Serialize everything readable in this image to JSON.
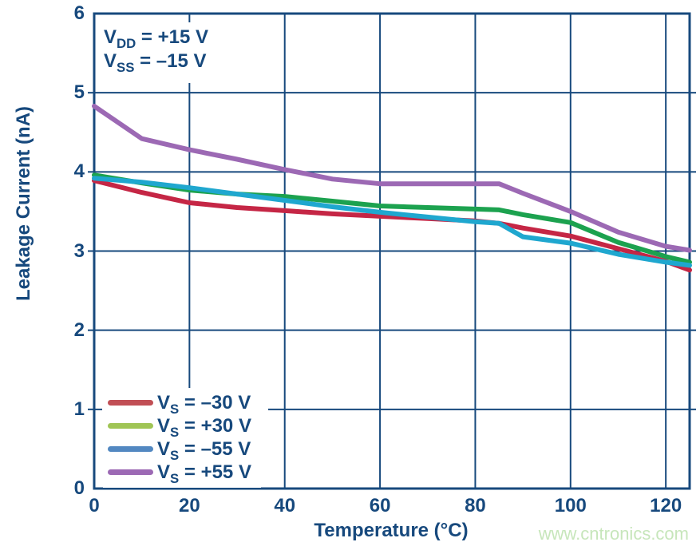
{
  "colors": {
    "axis": "#17497d",
    "background": "#ffffff",
    "watermark": "#c7e6bb"
  },
  "watermark": "www.cntronics.com",
  "annotation": {
    "lines": [
      {
        "pre": "V",
        "sub": "DD",
        "post": " = +15 V",
        "text": "VDD = +15 V"
      },
      {
        "pre": "V",
        "sub": "SS",
        "post": " = –15 V",
        "text": "VSS = –15 V"
      }
    ]
  },
  "chart_data": {
    "type": "line",
    "title": "",
    "xlabel": "Temperature (°C)",
    "ylabel": "Leakage Current (nA)",
    "xlim": [
      0,
      125
    ],
    "ylim": [
      0,
      6
    ],
    "x_ticks": [
      0,
      20,
      40,
      60,
      80,
      100,
      120
    ],
    "y_ticks": [
      0,
      1,
      2,
      3,
      4,
      5,
      6
    ],
    "grid": true,
    "legend_position": "lower-left",
    "x": [
      0,
      10,
      20,
      30,
      40,
      50,
      60,
      70,
      80,
      85,
      90,
      100,
      110,
      120,
      125
    ],
    "series": [
      {
        "id": "vs-minus-30",
        "name": "VS = –30 V",
        "pre": "V",
        "sub": "S",
        "post": " = –30 V",
        "line_color": "#c52645",
        "legend_color": "#c14f55",
        "values": [
          3.89,
          3.74,
          3.61,
          3.55,
          3.51,
          3.47,
          3.44,
          3.41,
          3.38,
          3.35,
          3.29,
          3.19,
          3.03,
          2.87,
          2.76
        ]
      },
      {
        "id": "vs-plus-30",
        "name": "VS = +30 V",
        "pre": "V",
        "sub": "S",
        "post": " = +30 V",
        "line_color": "#1ca24f",
        "legend_color": "#a0c555",
        "values": [
          3.96,
          3.86,
          3.77,
          3.72,
          3.69,
          3.63,
          3.57,
          3.55,
          3.53,
          3.52,
          3.46,
          3.36,
          3.11,
          2.93,
          2.86
        ]
      },
      {
        "id": "vs-minus-55",
        "name": "VS = –55 V",
        "pre": "V",
        "sub": "S",
        "post": " = –55 V",
        "line_color": "#1fa7cf",
        "legend_color": "#5288c1",
        "values": [
          3.92,
          3.87,
          3.8,
          3.72,
          3.64,
          3.56,
          3.49,
          3.43,
          3.37,
          3.35,
          3.18,
          3.1,
          2.96,
          2.86,
          2.82
        ]
      },
      {
        "id": "vs-plus-55",
        "name": "VS = +55 V",
        "pre": "V",
        "sub": "S",
        "post": " = +55 V",
        "line_color": "#9c69b4",
        "legend_color": "#9c69b4",
        "values": [
          4.83,
          4.42,
          4.28,
          4.16,
          4.03,
          3.91,
          3.85,
          3.85,
          3.85,
          3.85,
          3.73,
          3.5,
          3.24,
          3.06,
          3.01
        ]
      }
    ]
  }
}
